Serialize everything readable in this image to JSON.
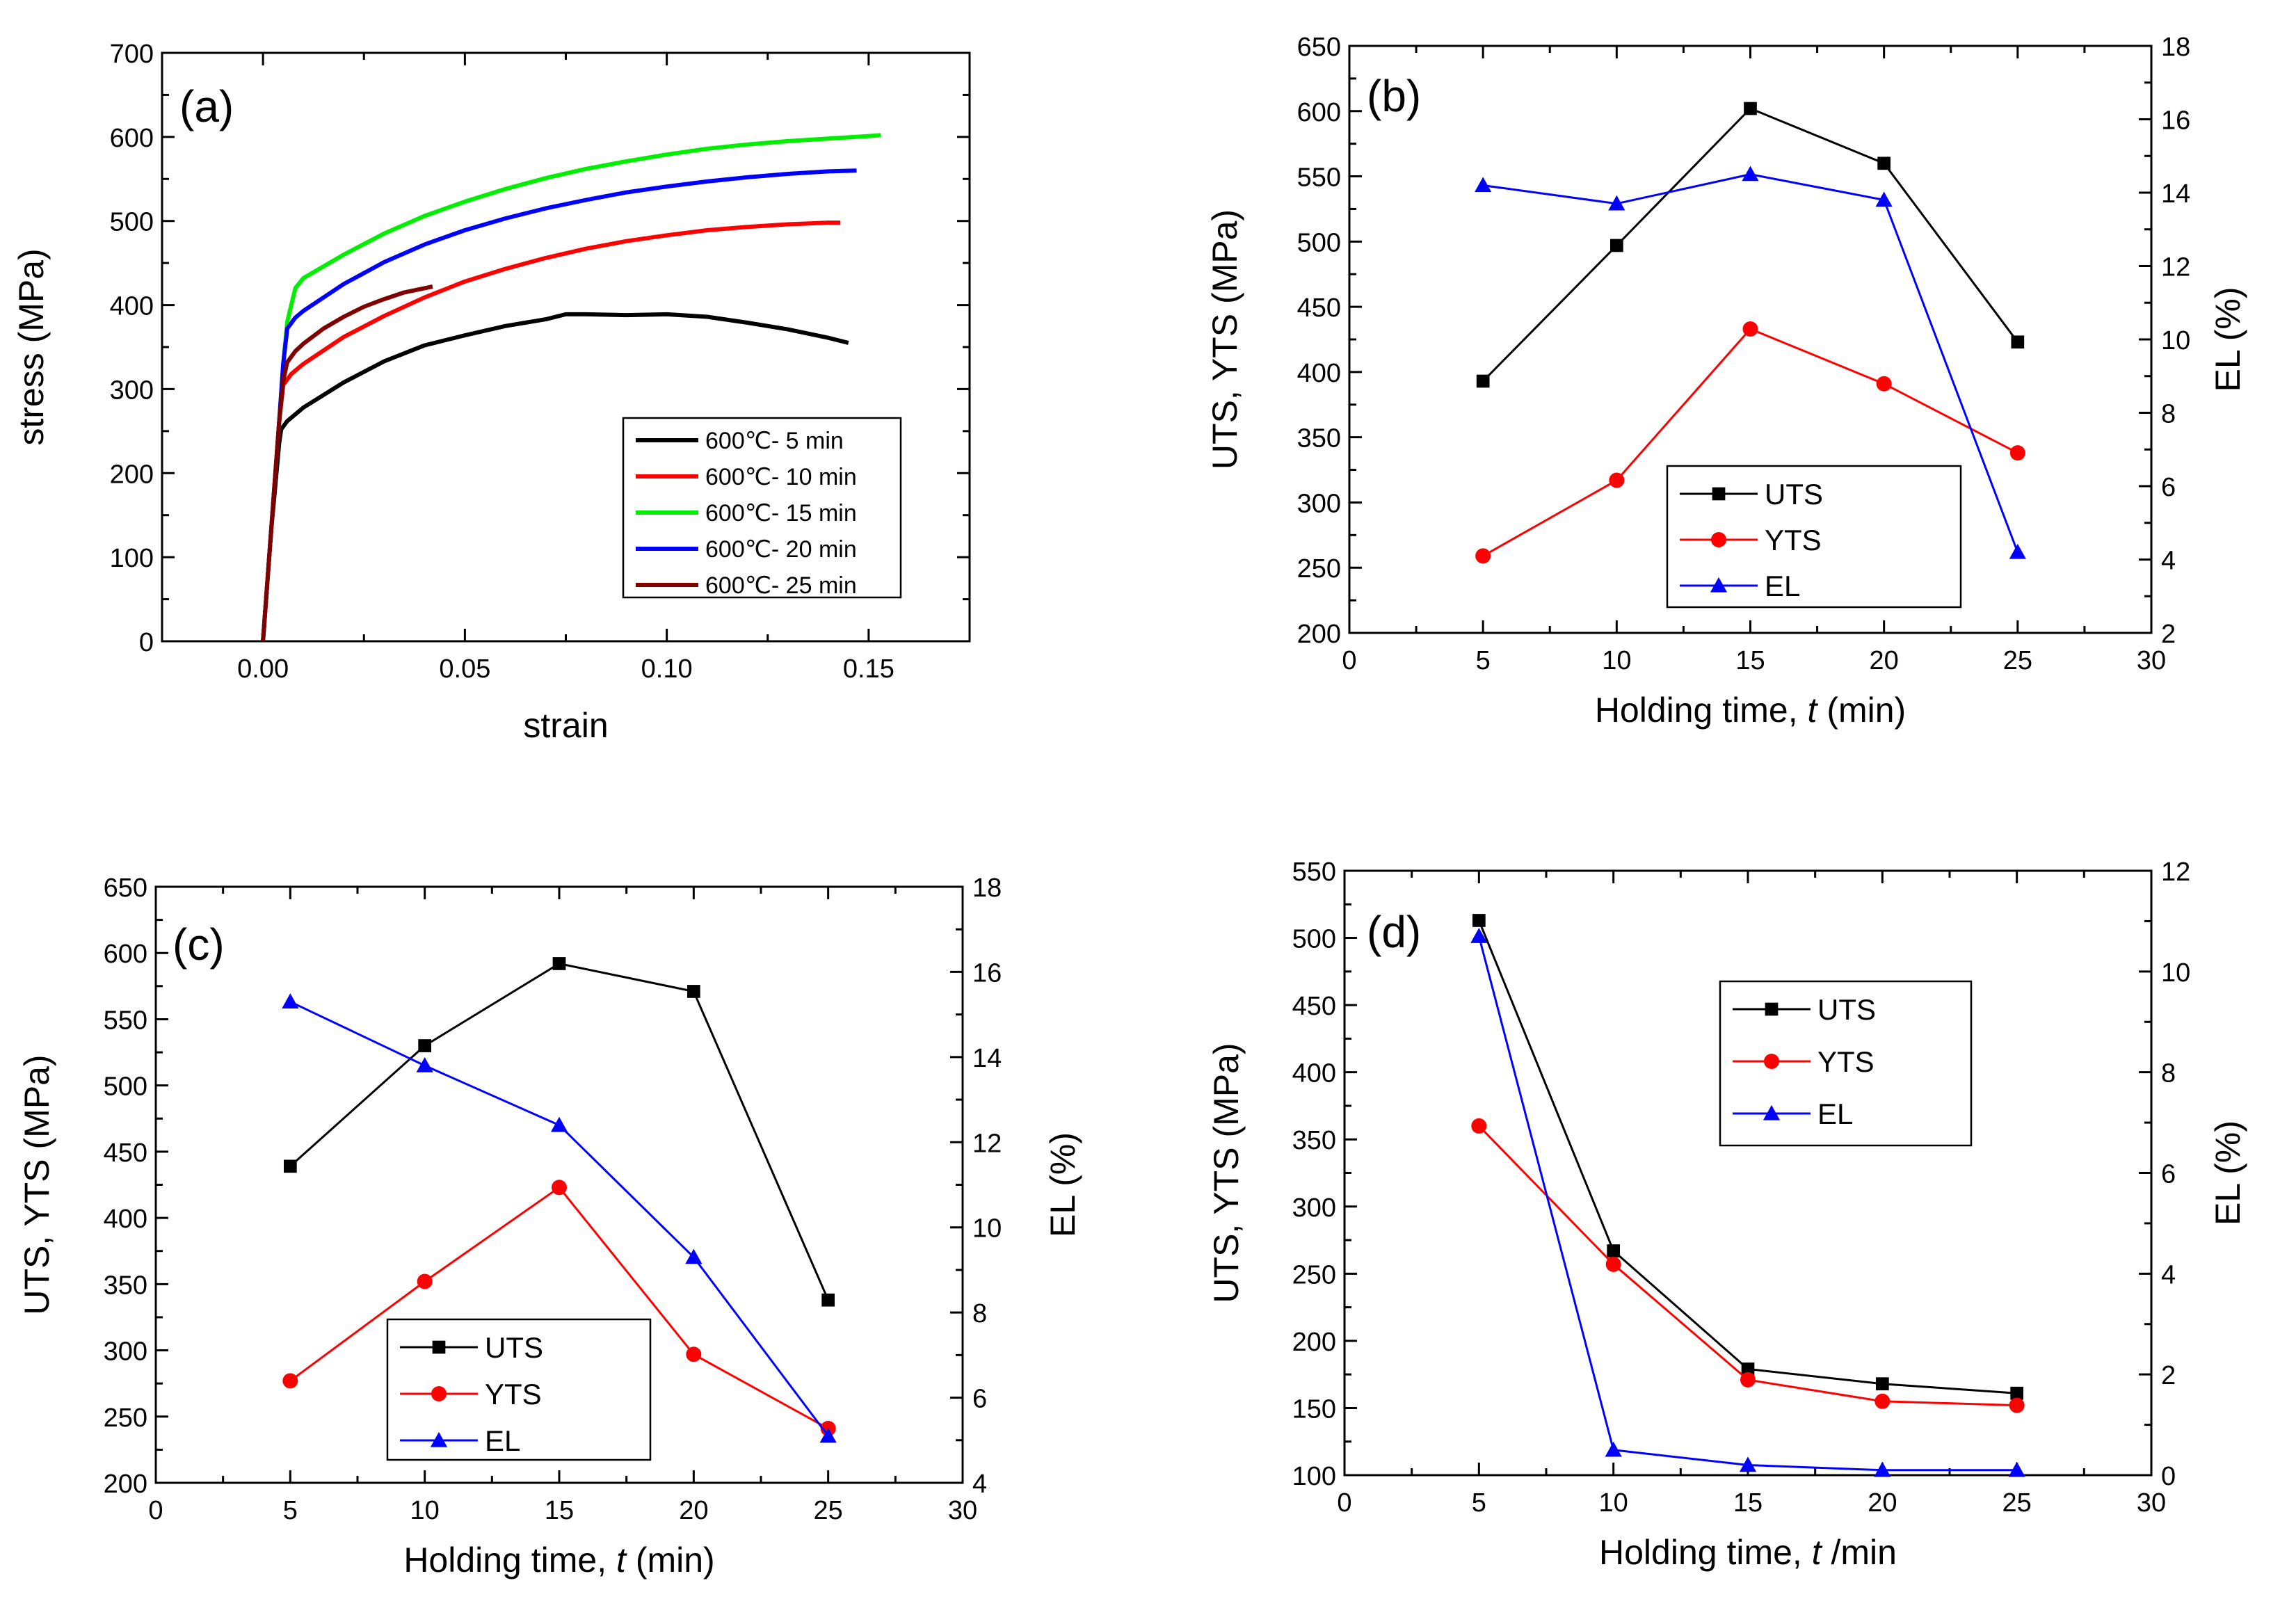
{
  "chart_data": [
    {
      "panel": "(a)",
      "type": "line",
      "xlabel": "strain",
      "ylabel": "stress (MPa)",
      "xlim": [
        -0.025,
        0.175
      ],
      "ylim": [
        0,
        700
      ],
      "xticks": [
        0.0,
        0.05,
        0.1,
        0.15
      ],
      "xtick_labels": [
        "0.00",
        "0.05",
        "0.10",
        "0.15"
      ],
      "yticks": [
        0,
        100,
        200,
        300,
        400,
        500,
        600,
        700
      ],
      "ytick_labels": [
        "0",
        "100",
        "200",
        "300",
        "400",
        "500",
        "600",
        "700"
      ],
      "legend_position": "lower-right",
      "series": [
        {
          "name": "600℃-  5 min",
          "color": "#000000",
          "x": [
            0,
            0.002,
            0.004,
            0.0045,
            0.006,
            0.01,
            0.02,
            0.03,
            0.04,
            0.05,
            0.06,
            0.07,
            0.075,
            0.08,
            0.09,
            0.1,
            0.11,
            0.12,
            0.13,
            0.14,
            0.145
          ],
          "y": [
            0,
            130,
            235,
            252,
            262,
            278,
            308,
            333,
            352,
            364,
            375,
            383,
            389,
            389,
            388,
            389,
            386,
            379,
            371,
            361,
            355
          ]
        },
        {
          "name": "600℃- 10 min",
          "color": "#ff0000",
          "x": [
            0,
            0.002,
            0.004,
            0.005,
            0.007,
            0.01,
            0.02,
            0.03,
            0.04,
            0.05,
            0.06,
            0.07,
            0.08,
            0.09,
            0.1,
            0.11,
            0.12,
            0.13,
            0.14,
            0.143
          ],
          "y": [
            0,
            130,
            260,
            305,
            318,
            330,
            362,
            387,
            409,
            428,
            443,
            456,
            467,
            476,
            483,
            489,
            493,
            496,
            498,
            498
          ]
        },
        {
          "name": "600℃- 15 min",
          "color": "#00ee00",
          "x": [
            0,
            0.002,
            0.004,
            0.005,
            0.006,
            0.008,
            0.01,
            0.02,
            0.03,
            0.04,
            0.05,
            0.06,
            0.07,
            0.08,
            0.09,
            0.1,
            0.11,
            0.12,
            0.13,
            0.14,
            0.15,
            0.153
          ],
          "y": [
            0,
            130,
            260,
            330,
            380,
            420,
            432,
            460,
            485,
            506,
            523,
            538,
            551,
            562,
            571,
            579,
            586,
            591,
            595,
            598,
            601,
            602
          ]
        },
        {
          "name": "600℃- 20 min",
          "color": "#0000ff",
          "x": [
            0,
            0.002,
            0.004,
            0.005,
            0.006,
            0.008,
            0.01,
            0.02,
            0.03,
            0.04,
            0.05,
            0.06,
            0.07,
            0.08,
            0.09,
            0.1,
            0.11,
            0.12,
            0.13,
            0.14,
            0.147
          ],
          "y": [
            0,
            130,
            260,
            330,
            372,
            385,
            393,
            425,
            451,
            472,
            489,
            503,
            515,
            525,
            534,
            541,
            547,
            552,
            556,
            559,
            560
          ]
        },
        {
          "name": "600℃- 25 min",
          "color": "#800000",
          "x": [
            0,
            0.002,
            0.004,
            0.005,
            0.006,
            0.008,
            0.01,
            0.015,
            0.02,
            0.025,
            0.03,
            0.035,
            0.04,
            0.042
          ],
          "y": [
            0,
            130,
            260,
            310,
            332,
            345,
            354,
            372,
            386,
            398,
            407,
            415,
            420,
            422
          ]
        }
      ]
    },
    {
      "panel": "(b)",
      "type": "line",
      "xlabel": "Holding time, t (min)",
      "xlabel_parts": [
        "Holding time, ",
        "t",
        " (min)"
      ],
      "ylabel": "UTS, YTS  (MPa)",
      "ylabel_right": "EL (%)",
      "xlim": [
        0,
        30
      ],
      "ylim": [
        200,
        650
      ],
      "ylim_right": [
        2,
        18
      ],
      "xticks": [
        0,
        5,
        10,
        15,
        20,
        25,
        30
      ],
      "xtick_labels": [
        "0",
        "5",
        "10",
        "15",
        "20",
        "25",
        "30"
      ],
      "yticks": [
        200,
        250,
        300,
        350,
        400,
        450,
        500,
        550,
        600,
        650
      ],
      "ytick_labels": [
        "200",
        "250",
        "300",
        "350",
        "400",
        "450",
        "500",
        "550",
        "600",
        "650"
      ],
      "yticks_right": [
        2,
        4,
        6,
        8,
        10,
        12,
        14,
        16,
        18
      ],
      "ytick_labels_right": [
        "2",
        "4",
        "6",
        "8",
        "10",
        "12",
        "14",
        "16",
        "18"
      ],
      "legend_position": "lower-center",
      "x": [
        5,
        10,
        15,
        20,
        25
      ],
      "series": [
        {
          "name": "UTS",
          "axis": "left",
          "marker": "square",
          "color": "#000000",
          "values": [
            393,
            497,
            602,
            560,
            423
          ]
        },
        {
          "name": "YTS",
          "axis": "left",
          "marker": "circle",
          "color": "#ff0000",
          "values": [
            259,
            317,
            433,
            391,
            338
          ]
        },
        {
          "name": "EL",
          "axis": "right",
          "marker": "triangle",
          "color": "#0000ff",
          "values": [
            14.2,
            13.7,
            14.5,
            13.8,
            4.2
          ]
        }
      ]
    },
    {
      "panel": "(c)",
      "type": "line",
      "xlabel": "Holding time, t (min)",
      "xlabel_parts": [
        "Holding time, ",
        "t",
        " (min)"
      ],
      "ylabel": "UTS,  YTS  (MPa)",
      "ylabel_right": "EL (%)",
      "xlim": [
        0,
        30
      ],
      "ylim": [
        200,
        650
      ],
      "ylim_right": [
        4,
        18
      ],
      "xticks": [
        0,
        5,
        10,
        15,
        20,
        25,
        30
      ],
      "xtick_labels": [
        "0",
        "5",
        "10",
        "15",
        "20",
        "25",
        "30"
      ],
      "yticks": [
        200,
        250,
        300,
        350,
        400,
        450,
        500,
        550,
        600,
        650
      ],
      "ytick_labels": [
        "200",
        "250",
        "300",
        "350",
        "400",
        "450",
        "500",
        "550",
        "600",
        "650"
      ],
      "yticks_right": [
        4,
        6,
        8,
        10,
        12,
        14,
        16,
        18
      ],
      "ytick_labels_right": [
        "4",
        "6",
        "8",
        "10",
        "12",
        "14",
        "16",
        "18"
      ],
      "legend_position": "lower-center",
      "x": [
        5,
        10,
        15,
        20,
        25
      ],
      "series": [
        {
          "name": "UTS",
          "axis": "left",
          "marker": "square",
          "color": "#000000",
          "values": [
            439,
            530,
            592,
            571,
            338
          ]
        },
        {
          "name": "YTS",
          "axis": "left",
          "marker": "circle",
          "color": "#ff0000",
          "values": [
            277,
            352,
            423,
            297,
            241
          ]
        },
        {
          "name": "EL",
          "axis": "right",
          "marker": "triangle",
          "color": "#0000ff",
          "values": [
            15.3,
            13.8,
            12.4,
            9.3,
            5.1
          ]
        }
      ]
    },
    {
      "panel": "(d)",
      "type": "line",
      "xlabel": "Holding time, t /min",
      "xlabel_parts": [
        "Holding time, ",
        "t",
        " /min"
      ],
      "ylabel": "UTS, YTS  (MPa)",
      "ylabel_right": "EL (%)",
      "xlim": [
        0,
        30
      ],
      "ylim": [
        100,
        550
      ],
      "ylim_right": [
        0,
        12
      ],
      "xticks": [
        0,
        5,
        10,
        15,
        20,
        25,
        30
      ],
      "xtick_labels": [
        "0",
        "5",
        "10",
        "15",
        "20",
        "25",
        "30"
      ],
      "yticks": [
        100,
        150,
        200,
        250,
        300,
        350,
        400,
        450,
        500,
        550
      ],
      "ytick_labels": [
        "100",
        "150",
        "200",
        "250",
        "300",
        "350",
        "400",
        "450",
        "500",
        "550"
      ],
      "yticks_right": [
        0,
        2,
        4,
        6,
        8,
        10,
        12
      ],
      "ytick_labels_right": [
        "0",
        "2",
        "4",
        "6",
        "8",
        "10",
        "12"
      ],
      "legend_position": "upper-center",
      "x": [
        5,
        10,
        15,
        20,
        25
      ],
      "series": [
        {
          "name": "UTS",
          "axis": "left",
          "marker": "square",
          "color": "#000000",
          "values": [
            513,
            267,
            179,
            168,
            161
          ]
        },
        {
          "name": "YTS",
          "axis": "left",
          "marker": "circle",
          "color": "#ff0000",
          "values": [
            360,
            257,
            171,
            155,
            152
          ]
        },
        {
          "name": "EL",
          "axis": "right",
          "marker": "triangle",
          "color": "#0000ff",
          "values": [
            10.7,
            0.5,
            0.2,
            0.1,
            0.1
          ]
        }
      ]
    }
  ]
}
